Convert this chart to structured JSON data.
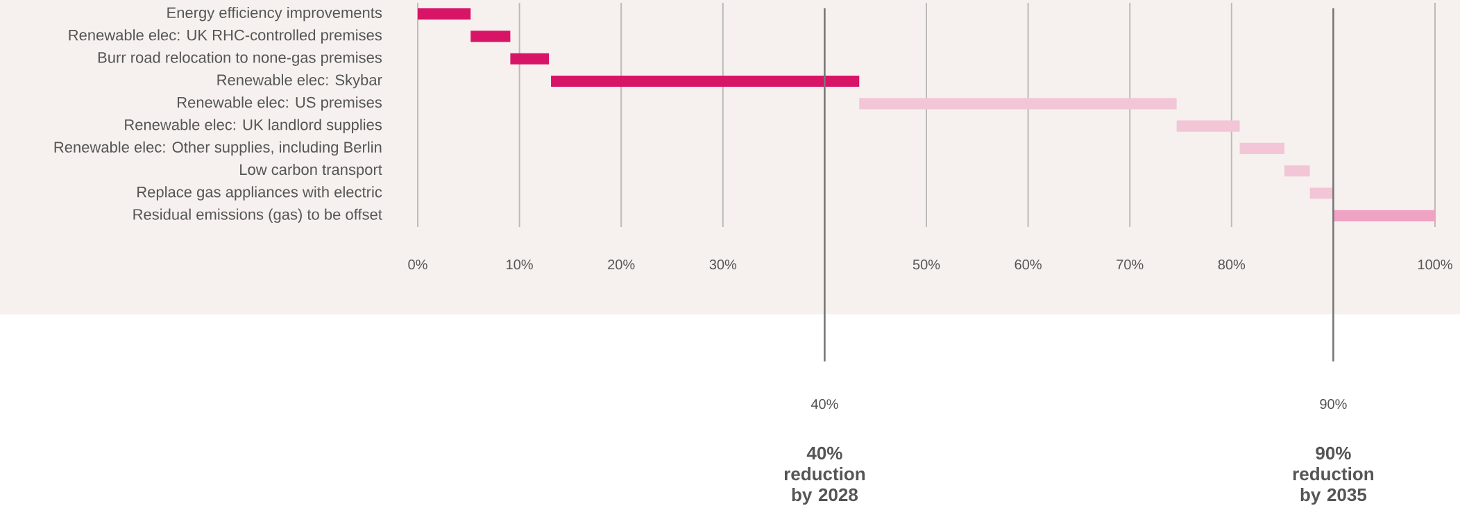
{
  "chart_data": {
    "type": "bar",
    "orientation": "horizontal",
    "categories": [
      "Energy efficiency improvements",
      "Renewable elec: UK RHC-controlled premises",
      "Burr road relocation to none-gas premises",
      "Renewable elec: Skybar",
      "Renewable elec: US premises",
      "Renewable elec: UK landlord supplies",
      "Renewable elec: Other supplies, including Berlin",
      "Low carbon transport",
      "Replace gas appliances with electric",
      "Residual emissions (gas) to be offset"
    ],
    "base": [
      0,
      5.2,
      9.1,
      13.1,
      43.4,
      74.6,
      80.8,
      85.2,
      87.7,
      90
    ],
    "values": [
      5.2,
      3.9,
      3.8,
      30.3,
      31.2,
      6.2,
      4.4,
      2.5,
      2.3,
      10
    ],
    "colors": [
      "#d81467",
      "#d81467",
      "#d81467",
      "#d81467",
      "#f2c6d6",
      "#f2c6d6",
      "#f2c6d6",
      "#f2c6d6",
      "#f2c6d6",
      "#eea3c3"
    ],
    "xlim": [
      0,
      100
    ],
    "xticks": [
      {
        "value": 0,
        "label": "0%"
      },
      {
        "value": 10,
        "label": "10%"
      },
      {
        "value": 20,
        "label": "20%"
      },
      {
        "value": 30,
        "label": "30%"
      },
      {
        "value": 50,
        "label": "50%"
      },
      {
        "value": 60,
        "label": "60%"
      },
      {
        "value": 70,
        "label": "70%"
      },
      {
        "value": 80,
        "label": "80%"
      },
      {
        "value": 100,
        "label": "100%"
      }
    ],
    "grid": "x",
    "ref_lines": [
      {
        "axis": "x",
        "value": 40,
        "label": "40%",
        "color": "#777777"
      },
      {
        "axis": "x",
        "value": 90,
        "label": "90%",
        "color": "#777777"
      }
    ],
    "annotations": [
      "40% reduction by 2028",
      "90% reduction by 2035"
    ]
  }
}
